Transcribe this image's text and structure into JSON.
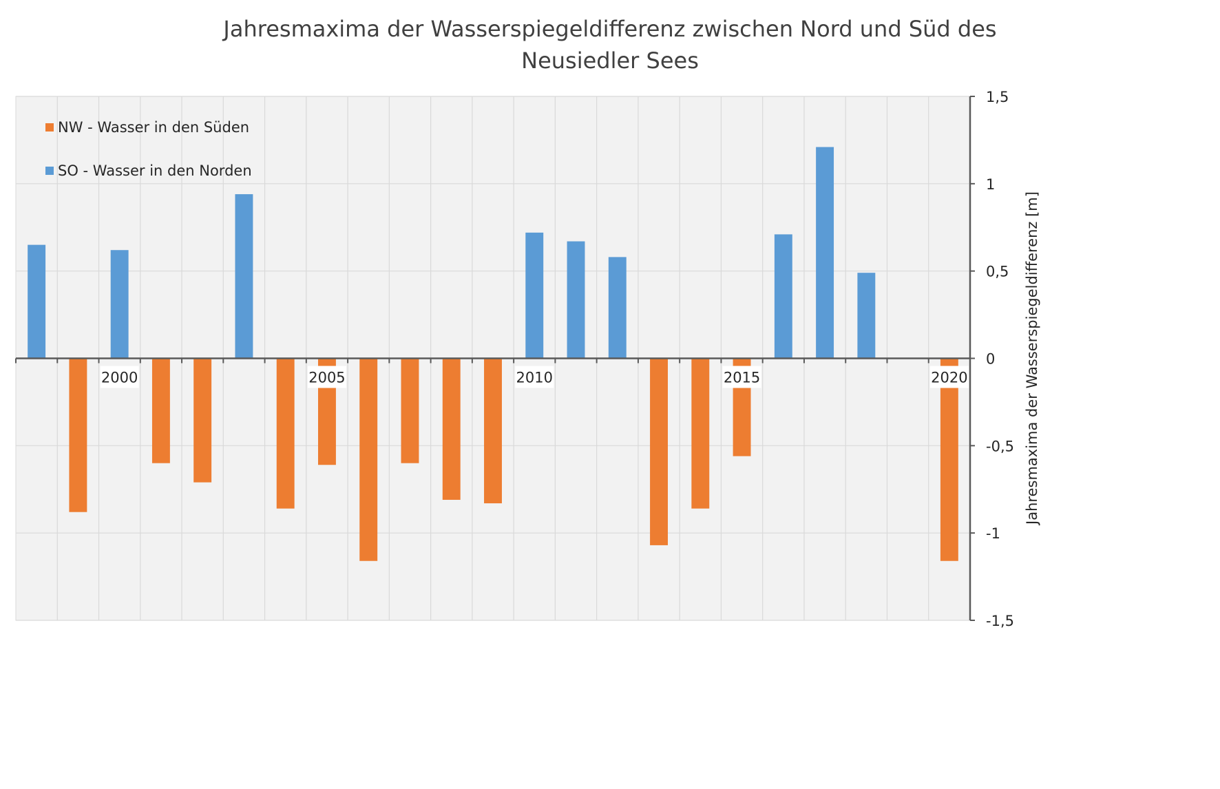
{
  "chart_data": {
    "type": "bar",
    "title": [
      "Jahresmaxima der Wasserspiegeldifferenz zwischen Nord und Süd des",
      "Neusiedler Sees"
    ],
    "ylabel": "Jahresmaxima der Wasserspiegeldifferenz [m]",
    "xlabel": "",
    "ylim": [
      -1.5,
      1.5
    ],
    "y_ticks": [
      1.5,
      1,
      0.5,
      0,
      -0.5,
      -1,
      -1.5
    ],
    "y_tick_labels": [
      "1,5",
      "1",
      "0,5",
      "0",
      "-0,5",
      "-1",
      "-1,5"
    ],
    "x": [
      1998,
      1999,
      2000,
      2001,
      2002,
      2003,
      2004,
      2005,
      2006,
      2007,
      2008,
      2009,
      2010,
      2011,
      2012,
      2013,
      2014,
      2015,
      2016,
      2017,
      2018,
      2019,
      2020
    ],
    "x_tick_labels": [
      {
        "year": 2000,
        "label": "2000"
      },
      {
        "year": 2005,
        "label": "2005"
      },
      {
        "year": 2010,
        "label": "2010"
      },
      {
        "year": 2015,
        "label": "2015"
      },
      {
        "year": 2020,
        "label": "2020"
      }
    ],
    "y_axis_side": "right",
    "grid": true,
    "legend_position": "top-left",
    "series": [
      {
        "name": "NW - Wasser in den Süden",
        "color": "#ED7D31",
        "values": [
          0,
          -0.88,
          0,
          -0.6,
          -0.71,
          0,
          -0.86,
          -0.61,
          -1.16,
          -0.6,
          -0.81,
          -0.83,
          0,
          0,
          0,
          -1.07,
          -0.86,
          -0.56,
          0,
          0,
          0,
          0,
          -1.16
        ]
      },
      {
        "name": "SO - Wasser in den Norden",
        "color": "#5B9BD5",
        "values": [
          0.65,
          0,
          0.62,
          0,
          0,
          0.94,
          0,
          0,
          0,
          0,
          0,
          0,
          0.72,
          0.67,
          0.58,
          0,
          0,
          0,
          0.71,
          1.21,
          0.49,
          0,
          0
        ]
      }
    ]
  }
}
